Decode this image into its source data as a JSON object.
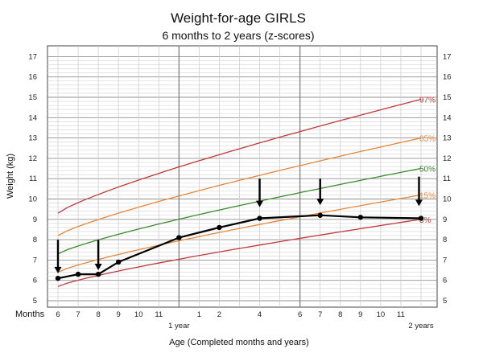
{
  "chart_data": {
    "type": "line",
    "title": "Weight-for-age  GIRLS",
    "subtitle": "6 months to 2 years (z-scores)",
    "ylabel": "Weight (kg)",
    "xlabel": "Age (Completed months and years)",
    "x_row_label": "Months",
    "ylim": [
      4.5,
      17.5
    ],
    "y_ticks": [
      5,
      6,
      7,
      8,
      9,
      10,
      11,
      12,
      13,
      14,
      15,
      16,
      17
    ],
    "x_range_months": [
      6,
      24
    ],
    "x_tick_labels": [
      "6",
      "7",
      "8",
      "9",
      "10",
      "11",
      "1",
      "2",
      "4",
      "6",
      "7",
      "8",
      "9",
      "10",
      "11"
    ],
    "x_tick_months": [
      6,
      7,
      8,
      9,
      10,
      11,
      13,
      14,
      16,
      18,
      19,
      20,
      21,
      22,
      23
    ],
    "year_labels": [
      {
        "text": "1 year",
        "month": 12
      },
      {
        "text": "2 years",
        "month": 24
      }
    ],
    "percentile_curves": [
      {
        "name": "97%",
        "color": "#c0393b",
        "x": [
          6,
          24
        ],
        "y": [
          9.3,
          14.9
        ]
      },
      {
        "name": "85%",
        "color": "#e8873a",
        "x": [
          6,
          24
        ],
        "y": [
          8.2,
          13.0
        ]
      },
      {
        "name": "50%",
        "color": "#3a8a2e",
        "x": [
          6,
          24
        ],
        "y": [
          7.3,
          11.5
        ]
      },
      {
        "name": "15%",
        "color": "#e8873a",
        "x": [
          6,
          24
        ],
        "y": [
          6.4,
          10.2
        ]
      },
      {
        "name": "3%",
        "color": "#c0393b",
        "x": [
          6,
          24
        ],
        "y": [
          5.7,
          9.0
        ]
      }
    ],
    "series": [
      {
        "color": "#000000",
        "x": [
          6,
          7,
          8,
          9,
          12,
          14,
          16,
          19,
          21,
          24
        ],
        "y": [
          6.1,
          6.3,
          6.3,
          6.9,
          8.1,
          8.6,
          9.05,
          9.2,
          9.1,
          9.05
        ]
      }
    ],
    "arrows": [
      {
        "month": 6,
        "top": 8.0,
        "bottom": 6.35
      },
      {
        "month": 8,
        "top": 8.0,
        "bottom": 6.5
      },
      {
        "month": 16,
        "top": 11.0,
        "bottom": 9.6
      },
      {
        "month": 19,
        "top": 11.0,
        "bottom": 9.7
      },
      {
        "month": 23.9,
        "top": 11.1,
        "bottom": 9.65
      }
    ]
  }
}
